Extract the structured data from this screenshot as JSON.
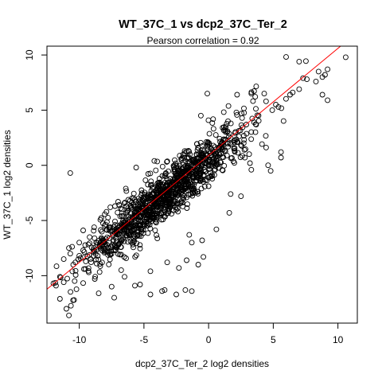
{
  "chart_data": {
    "type": "scatter",
    "title": "WT_37C_1 vs dcp2_37C_Ter_2",
    "subtitle": "Pearson correlation =  0.92",
    "xlabel": "dcp2_37C_Ter_2 log2 densities",
    "ylabel": "WT_37C_1 log2 densities",
    "xlim": [
      -12.5,
      11.5
    ],
    "ylim": [
      -14.3,
      10.8
    ],
    "xticks": [
      -10,
      -5,
      0,
      5,
      10
    ],
    "yticks": [
      -10,
      -5,
      0,
      5,
      10
    ],
    "xtick_labels": [
      "-10",
      "-5",
      "0",
      "5",
      "10"
    ],
    "ytick_labels": [
      "-10",
      "-5",
      "0",
      "5",
      "10"
    ],
    "marker": "open-circle",
    "point_color": "#000000",
    "fit_line": {
      "color": "#ff0000",
      "intercept": 0.9,
      "slope": 0.97
    },
    "approx_point_count": 1200,
    "points": [
      [
        10.6,
        9.8
      ],
      [
        7.0,
        9.4
      ],
      [
        7.6,
        7.8
      ],
      [
        8.3,
        7.6
      ],
      [
        8.5,
        8.5
      ],
      [
        8.8,
        8.0
      ],
      [
        9.0,
        8.2
      ],
      [
        9.2,
        8.7
      ],
      [
        9.2,
        5.9
      ],
      [
        8.8,
        6.4
      ],
      [
        7.3,
        7.9
      ],
      [
        7.0,
        6.9
      ],
      [
        6.5,
        6.6
      ],
      [
        6.3,
        6.4
      ],
      [
        5.2,
        5.5
      ],
      [
        4.3,
        6.5
      ],
      [
        3.3,
        6.5
      ],
      [
        2.2,
        6.4
      ],
      [
        -0.1,
        6.5
      ],
      [
        -0.6,
        4.5
      ],
      [
        1.5,
        4.0
      ],
      [
        -4.2,
        0.4
      ],
      [
        -5.6,
        -0.2
      ],
      [
        -10.7,
        -0.7
      ],
      [
        -6.4,
        -2.1
      ],
      [
        -3.4,
        -3.1
      ],
      [
        -0.6,
        -1.3
      ],
      [
        5.6,
        0.7
      ],
      [
        5.6,
        1.2
      ],
      [
        4.6,
        0.0
      ],
      [
        4.8,
        -0.5
      ],
      [
        3.3,
        -0.4
      ],
      [
        1.7,
        -2.6
      ],
      [
        2.5,
        -2.8
      ],
      [
        -2.1,
        -2.0
      ],
      [
        -7.0,
        -3.3
      ],
      [
        -7.6,
        -3.8
      ],
      [
        -6.8,
        -3.9
      ],
      [
        -9.7,
        -5.9
      ],
      [
        -9.2,
        -6.5
      ],
      [
        -10.0,
        -7.0
      ],
      [
        -9.7,
        -7.7
      ],
      [
        -10.8,
        -7.5
      ],
      [
        -11.2,
        -8.5
      ],
      [
        -10.7,
        -8.0
      ],
      [
        -10.3,
        -8.8
      ],
      [
        -9.5,
        -8.7
      ],
      [
        -11.5,
        -10.1
      ],
      [
        -12.0,
        -10.7
      ],
      [
        -11.8,
        -10.9
      ],
      [
        -11.2,
        -10.6
      ],
      [
        -11.5,
        -12.1
      ],
      [
        -10.4,
        -12.2
      ],
      [
        -11.0,
        -13.0
      ],
      [
        -10.8,
        -13.6
      ],
      [
        -8.5,
        -11.6
      ],
      [
        -7.3,
        -12.0
      ],
      [
        -5.7,
        -10.9
      ],
      [
        -5.3,
        -10.8
      ],
      [
        -4.5,
        -11.7
      ],
      [
        -3.6,
        -11.4
      ],
      [
        -3.4,
        -11.3
      ],
      [
        -2.5,
        -11.7
      ],
      [
        -1.8,
        -11.3
      ],
      [
        -1.3,
        -11.4
      ],
      [
        -0.8,
        -9.0
      ],
      [
        -0.4,
        -8.3
      ],
      [
        -1.7,
        -8.6
      ],
      [
        -2.3,
        -9.3
      ],
      [
        -3.2,
        -8.8
      ],
      [
        -4.5,
        -9.6
      ],
      [
        -6.5,
        -10.1
      ],
      [
        -7.5,
        -11.0
      ],
      [
        -8.8,
        -10.3
      ],
      [
        -1.3,
        -7.0
      ],
      [
        -0.5,
        -6.8
      ],
      [
        -1.5,
        -6.3
      ],
      [
        0.6,
        -5.8
      ],
      [
        1.6,
        -4.3
      ],
      [
        3.2,
        0.2
      ]
    ]
  }
}
